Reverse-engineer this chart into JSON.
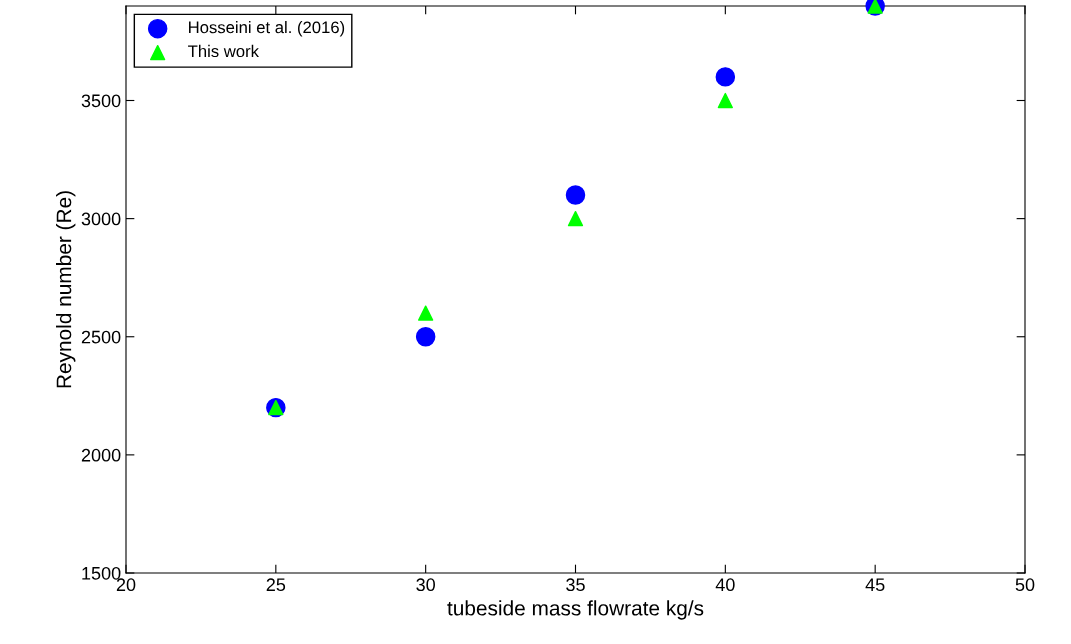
{
  "chart_data": {
    "type": "scatter",
    "xlabel": "tubeside mass flowrate kg/s",
    "ylabel": "Reynold number (Re)",
    "xlim": [
      20,
      50
    ],
    "xticks": [
      20,
      25,
      30,
      35,
      40,
      45,
      50
    ],
    "ylim": [
      1500,
      3900
    ],
    "yticks": [
      1500,
      2000,
      2500,
      3000,
      3500
    ],
    "grid": false,
    "legend": "top left",
    "series": [
      {
        "name": "Hosseini et al. (2016)",
        "color": "#0000ff",
        "marker": "circle",
        "x": [
          25,
          30,
          35,
          40,
          45
        ],
        "values": [
          2200,
          2500,
          3100,
          3600,
          3900
        ]
      },
      {
        "name": "This work",
        "color": "#00ff00",
        "marker": "triangle",
        "x": [
          25,
          30,
          35,
          40,
          45
        ],
        "values": [
          2200,
          2600,
          3000,
          3500,
          3900
        ]
      }
    ]
  }
}
